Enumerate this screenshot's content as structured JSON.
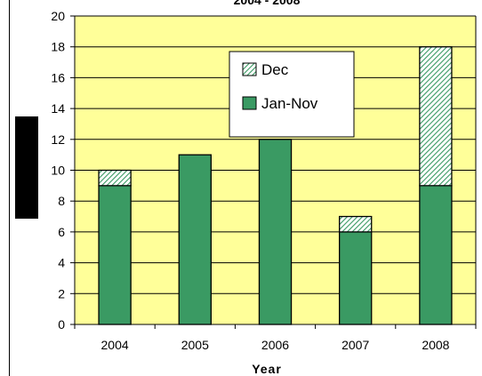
{
  "chart_data": {
    "type": "bar",
    "stacked": true,
    "title": "2004 - 2008",
    "xlabel": "Year",
    "ylabel": "",
    "ylim": [
      0,
      20
    ],
    "ytick_step": 2,
    "grid": true,
    "legend_position": "top-center",
    "categories": [
      "2004",
      "2005",
      "2006",
      "2007",
      "2008"
    ],
    "series": [
      {
        "name": "Jan-Nov",
        "values": [
          9,
          11,
          12,
          6,
          9
        ],
        "color": "#3a9a63",
        "pattern": "solid"
      },
      {
        "name": "Dec",
        "values": [
          1,
          0,
          0,
          1,
          9
        ],
        "color": "#3a9a63",
        "pattern": "hatched"
      }
    ],
    "plot_background": "#ffff99"
  }
}
